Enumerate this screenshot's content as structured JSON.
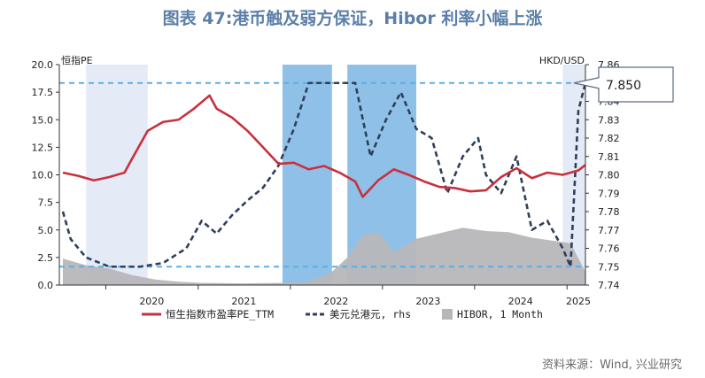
{
  "title": "图表 47:港币触及弱方保证，Hibor 利率小幅上涨",
  "source": "资料来源：Wind, 兴业研究",
  "chart_data": {
    "type": "line",
    "left_axis_label": "恒指PE",
    "right_axis_label": "HKD/USD",
    "ylim_left": [
      0,
      20
    ],
    "ylim_right": [
      7.74,
      7.86
    ],
    "left_ticks": [
      "0.0",
      "2.5",
      "5.0",
      "7.5",
      "10.0",
      "12.5",
      "15.0",
      "17.5",
      "20.0"
    ],
    "right_ticks": [
      "7.74",
      "7.75",
      "7.76",
      "7.77",
      "7.78",
      "7.79",
      "7.80",
      "7.81",
      "7.82",
      "7.83",
      "7.84",
      "7.85",
      "7.86"
    ],
    "x_ticks": [
      "2020",
      "2021",
      "2022",
      "2023",
      "2024",
      "2025"
    ],
    "x_range": [
      "2019-07-01",
      "2025-03-15"
    ],
    "callout": "7.850",
    "reference_lines_rhs": [
      7.85,
      7.75
    ],
    "shaded_periods": [
      {
        "from": "2019-10-15",
        "to": "2020-06-15",
        "color": "#e4ebf6"
      },
      {
        "from": "2021-12-01",
        "to": "2022-06-15",
        "color": "#8fc1e8"
      },
      {
        "from": "2022-08-15",
        "to": "2023-05-15",
        "color": "#8fc1e8"
      },
      {
        "from": "2024-12-15",
        "to": "2025-03-15",
        "color": "#e4ebf6"
      }
    ],
    "series": [
      {
        "name": "恒生指数市盈率PE_TTM",
        "axis": "left",
        "color": "#c9303e",
        "x": [
          "2019-07",
          "2019-09",
          "2019-11",
          "2020-01",
          "2020-03",
          "2020-04",
          "2020-06",
          "2020-08",
          "2020-10",
          "2020-12",
          "2021-02",
          "2021-03",
          "2021-05",
          "2021-07",
          "2021-09",
          "2021-11",
          "2022-01",
          "2022-03",
          "2022-05",
          "2022-07",
          "2022-09",
          "2022-10",
          "2022-12",
          "2023-02",
          "2023-04",
          "2023-06",
          "2023-08",
          "2023-10",
          "2023-12",
          "2024-02",
          "2024-04",
          "2024-06",
          "2024-08",
          "2024-10",
          "2024-12",
          "2025-02",
          "2025-03"
        ],
        "values": [
          10.2,
          9.9,
          9.5,
          9.8,
          10.2,
          11.5,
          14.0,
          14.8,
          15.0,
          16.0,
          17.2,
          16.0,
          15.2,
          14.0,
          12.5,
          11.0,
          11.1,
          10.5,
          10.8,
          10.2,
          9.4,
          8.0,
          9.5,
          10.5,
          10.0,
          9.4,
          8.9,
          8.8,
          8.5,
          8.6,
          9.8,
          10.6,
          9.7,
          10.2,
          10.0,
          10.4,
          10.9
        ]
      },
      {
        "name": "美元兑港元, rhs",
        "axis": "right",
        "color": "#2f3f5a",
        "x": [
          "2019-07",
          "2019-08",
          "2019-10",
          "2020-01",
          "2020-03",
          "2020-05",
          "2020-08",
          "2020-11",
          "2021-01",
          "2021-03",
          "2021-05",
          "2021-07",
          "2021-09",
          "2021-11",
          "2022-01",
          "2022-03",
          "2022-05",
          "2022-07",
          "2022-09",
          "2022-11",
          "2023-01",
          "2023-03",
          "2023-05",
          "2023-07",
          "2023-09",
          "2023-11",
          "2024-01",
          "2024-02",
          "2024-04",
          "2024-06",
          "2024-08",
          "2024-10",
          "2024-12",
          "2025-01",
          "2025-02",
          "2025-03"
        ],
        "values": [
          7.78,
          7.765,
          7.755,
          7.75,
          7.75,
          7.75,
          7.752,
          7.76,
          7.775,
          7.768,
          7.778,
          7.786,
          7.793,
          7.805,
          7.825,
          7.85,
          7.85,
          7.85,
          7.85,
          7.81,
          7.83,
          7.845,
          7.825,
          7.82,
          7.79,
          7.81,
          7.82,
          7.8,
          7.79,
          7.81,
          7.77,
          7.775,
          7.76,
          7.75,
          7.835,
          7.85
        ]
      },
      {
        "name": "HIBOR, 1 Month",
        "axis": "left",
        "color": "#b7b7ba",
        "x": [
          "2019-07",
          "2019-10",
          "2020-01",
          "2020-04",
          "2020-07",
          "2020-10",
          "2021-01",
          "2021-06",
          "2021-12",
          "2022-03",
          "2022-06",
          "2022-08",
          "2022-10",
          "2022-12",
          "2023-02",
          "2023-05",
          "2023-08",
          "2023-11",
          "2024-02",
          "2024-05",
          "2024-08",
          "2024-11",
          "2025-01",
          "2025-03"
        ],
        "values": [
          2.4,
          1.8,
          1.5,
          0.9,
          0.5,
          0.3,
          0.2,
          0.15,
          0.2,
          0.3,
          1.2,
          2.5,
          4.5,
          4.8,
          3.0,
          4.2,
          4.7,
          5.2,
          4.9,
          4.8,
          4.3,
          4.0,
          3.8,
          1.2
        ]
      }
    ]
  }
}
